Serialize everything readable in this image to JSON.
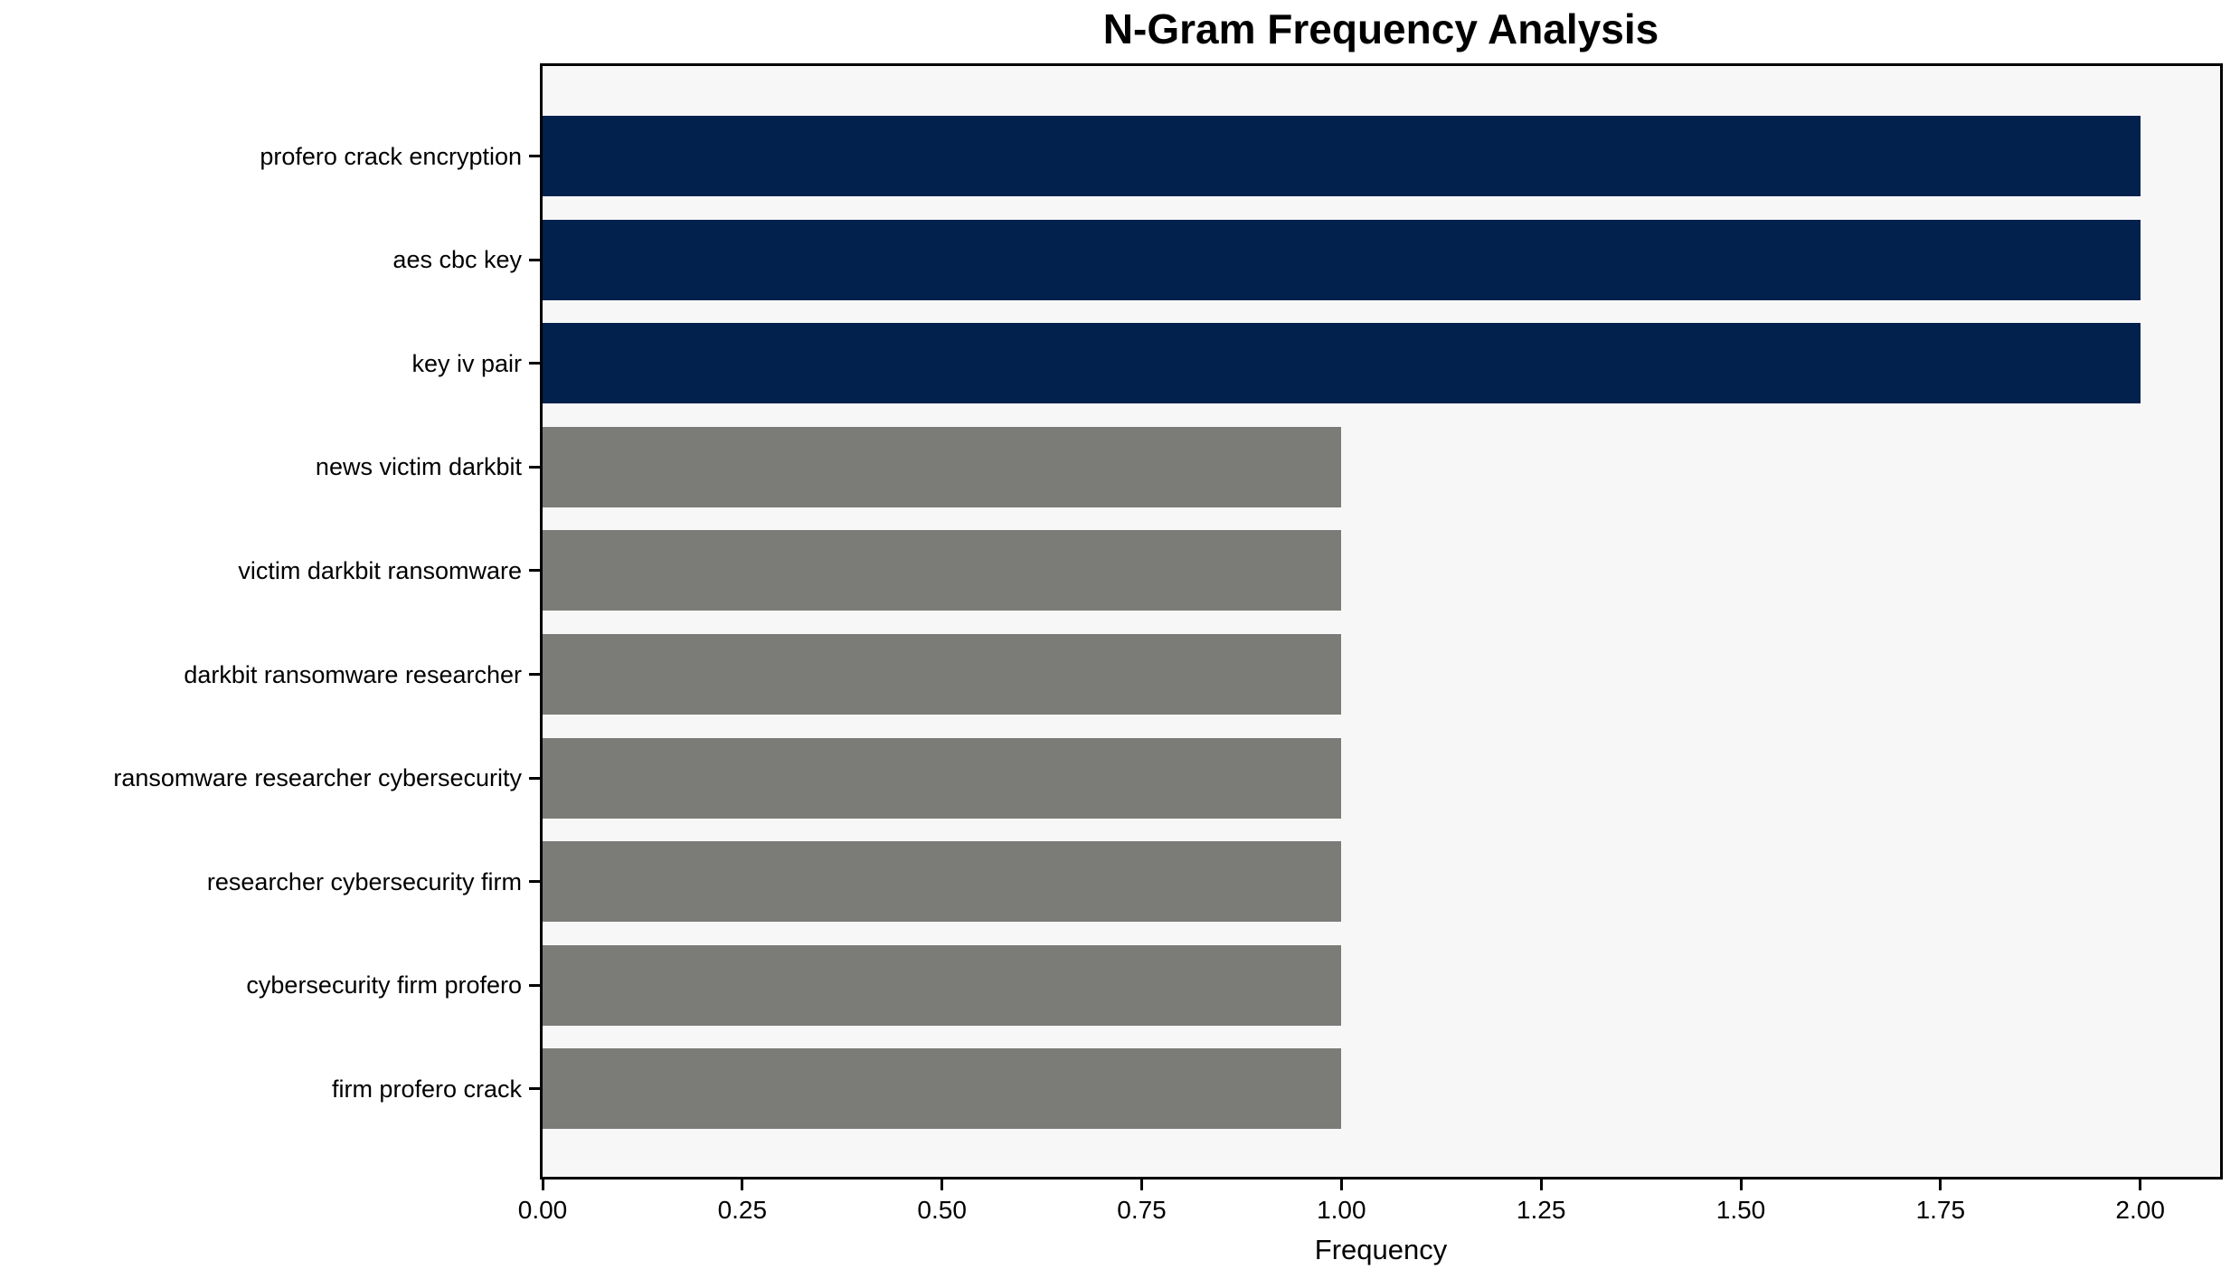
{
  "chart_data": {
    "type": "bar",
    "orientation": "horizontal",
    "title": "N-Gram Frequency Analysis",
    "xlabel": "Frequency",
    "ylabel": "",
    "categories": [
      "profero crack encryption",
      "aes cbc key",
      "key iv pair",
      "news victim darkbit",
      "victim darkbit ransomware",
      "darkbit ransomware researcher",
      "ransomware researcher cybersecurity",
      "researcher cybersecurity firm",
      "cybersecurity firm profero",
      "firm profero crack"
    ],
    "values": [
      2,
      2,
      2,
      1,
      1,
      1,
      1,
      1,
      1,
      1
    ],
    "bar_colors": [
      "#02214c",
      "#02214c",
      "#02214c",
      "#7b7b78",
      "#7b7b78",
      "#7b7b78",
      "#7b7b78",
      "#7b7b78",
      "#7b7b78",
      "#7b7b78"
    ],
    "xlim": [
      0,
      2.1
    ],
    "xticks": [
      0,
      0.25,
      0.5,
      0.75,
      1,
      1.25,
      1.5,
      1.75,
      2
    ],
    "xtick_labels": [
      "0.00",
      "0.25",
      "0.50",
      "0.75",
      "1.00",
      "1.25",
      "1.50",
      "1.75",
      "2.00"
    ],
    "grid": false,
    "legend": null,
    "colors": {
      "highlight_bar": "#02214c",
      "default_bar": "#7b7b78",
      "plot_background": "#f7f7f8",
      "figure_background": "#ffffff",
      "spine": "#000000",
      "text": "#000000"
    }
  }
}
